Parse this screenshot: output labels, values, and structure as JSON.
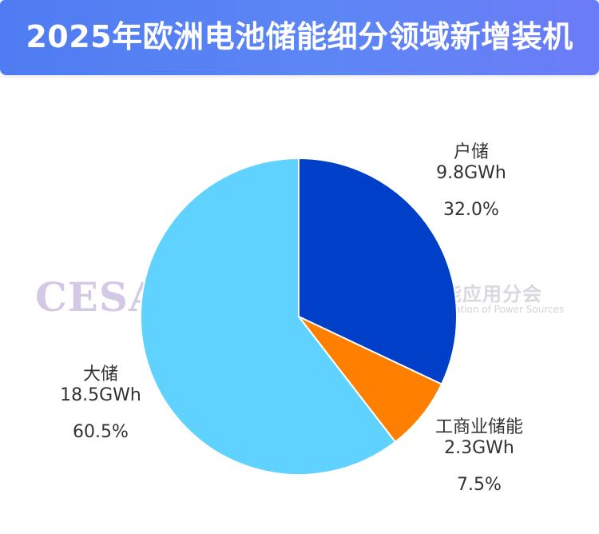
{
  "header": {
    "title": "2025年欧洲电池储能细分领域新增装机"
  },
  "watermark": {
    "org_abbr": "CESA",
    "org_name_cn": "中国化学与物理电源行业协会储能应用分会",
    "org_name_en": "Energy Storage Application Branch of China Industrial Association of Power Sources"
  },
  "chart_data": {
    "type": "pie",
    "title": "2025年欧洲电池储能细分领域新增装机",
    "unit": "GWh",
    "slices": [
      {
        "label": "户储",
        "value": 9.8,
        "value_label": "9.8GWh",
        "percent": 32.0,
        "percent_label": "32.0%",
        "color": "#0040c8"
      },
      {
        "label": "工商业储能",
        "value": 2.3,
        "value_label": "2.3GWh",
        "percent": 7.5,
        "percent_label": "7.5%",
        "color": "#ff7f00"
      },
      {
        "label": "大储",
        "value": 18.5,
        "value_label": "18.5GWh",
        "percent": 60.5,
        "percent_label": "60.5%",
        "color": "#5fd2ff"
      }
    ],
    "start_angle": "12 o'clock",
    "direction": "clockwise",
    "legend": "none"
  }
}
